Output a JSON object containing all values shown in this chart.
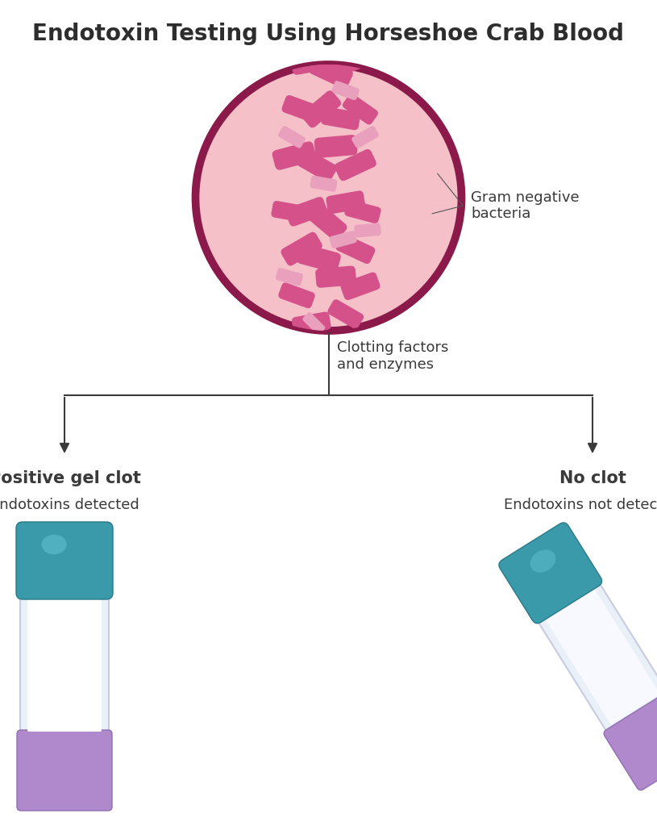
{
  "title": "Endotoxin Testing Using Horseshoe Crab Blood",
  "title_fontsize": 20,
  "title_color": "#2d2d2d",
  "background_color": "#ffffff",
  "circle_fill": "#f5c0c8",
  "circle_edge": "#8b1a4a",
  "circle_edge_width": 7,
  "bacteria_color_dark": "#d4518a",
  "bacteria_color_light": "#e8a0bc",
  "label_gram_neg": "Gram negative\nbacteria",
  "label_clotting": "Clotting factors\nand enzymes",
  "label_positive_bold": "Positive gel clot",
  "label_positive_sub": "Endotoxins detected",
  "label_noclot_bold": "No clot",
  "label_noclot_sub": "Endotoxins not detected",
  "arrow_color": "#3a3a3a",
  "line_color": "#3a3a3a",
  "text_color": "#3a3a3a",
  "bacteria_list": [
    [
      0.37,
      0.83,
      20,
      0.048,
      true
    ],
    [
      0.43,
      0.86,
      -10,
      0.052,
      true
    ],
    [
      0.5,
      0.88,
      5,
      0.055,
      true
    ],
    [
      0.57,
      0.85,
      30,
      0.048,
      true
    ],
    [
      0.63,
      0.82,
      -20,
      0.052,
      true
    ],
    [
      0.39,
      0.78,
      -30,
      0.055,
      true
    ],
    [
      0.46,
      0.79,
      15,
      0.058,
      true
    ],
    [
      0.53,
      0.81,
      -5,
      0.055,
      true
    ],
    [
      0.61,
      0.78,
      25,
      0.052,
      true
    ],
    [
      0.34,
      0.74,
      10,
      0.048,
      true
    ],
    [
      0.41,
      0.74,
      -20,
      0.055,
      true
    ],
    [
      0.49,
      0.75,
      40,
      0.058,
      true
    ],
    [
      0.57,
      0.73,
      -10,
      0.052,
      true
    ],
    [
      0.64,
      0.74,
      15,
      0.048,
      true
    ],
    [
      0.36,
      0.68,
      -15,
      0.058,
      true
    ],
    [
      0.45,
      0.69,
      30,
      0.055,
      true
    ],
    [
      0.53,
      0.67,
      -5,
      0.058,
      true
    ],
    [
      0.61,
      0.69,
      -25,
      0.055,
      true
    ],
    [
      0.39,
      0.63,
      20,
      0.052,
      true
    ],
    [
      0.47,
      0.63,
      -40,
      0.055,
      true
    ],
    [
      0.55,
      0.64,
      10,
      0.052,
      true
    ],
    [
      0.63,
      0.63,
      35,
      0.048,
      true
    ],
    [
      0.43,
      0.58,
      -10,
      0.055,
      true
    ],
    [
      0.51,
      0.59,
      25,
      0.058,
      true
    ],
    [
      0.59,
      0.58,
      -20,
      0.052,
      true
    ],
    [
      0.34,
      0.81,
      15,
      0.036,
      false
    ],
    [
      0.66,
      0.76,
      -5,
      0.036,
      false
    ],
    [
      0.35,
      0.66,
      30,
      0.036,
      false
    ],
    [
      0.65,
      0.66,
      -30,
      0.036,
      false
    ],
    [
      0.48,
      0.71,
      10,
      0.036,
      false
    ],
    [
      0.56,
      0.77,
      -15,
      0.036,
      false
    ],
    [
      0.42,
      0.91,
      5,
      0.036,
      false
    ],
    [
      0.37,
      0.57,
      -10,
      0.036,
      false
    ],
    [
      0.57,
      0.61,
      20,
      0.036,
      false
    ],
    [
      0.44,
      0.86,
      45,
      0.032,
      false
    ],
    [
      0.62,
      0.88,
      -25,
      0.032,
      false
    ]
  ]
}
